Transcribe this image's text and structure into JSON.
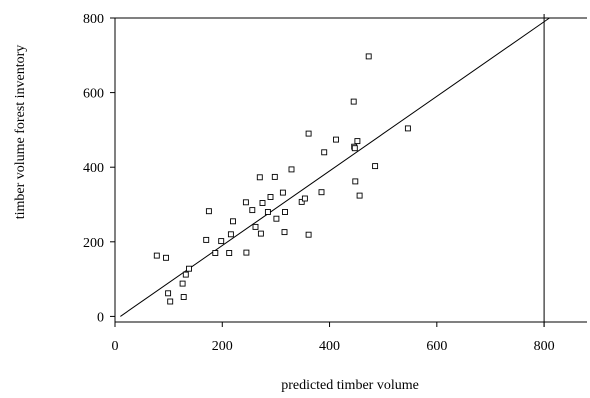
{
  "chart_data": {
    "type": "scatter",
    "title": "",
    "xlabel": "predicted timber   volume",
    "ylabel": "timber volume forest inventory",
    "xlim": [
      0,
      880
    ],
    "ylim": [
      -15,
      800
    ],
    "xticks": [
      0,
      200,
      400,
      600,
      800
    ],
    "yticks": [
      0,
      200,
      400,
      600,
      800
    ],
    "xtick_labels": [
      "0",
      "200",
      "400",
      "600",
      "800"
    ],
    "ytick_labels": [
      "0",
      "200",
      "400",
      "600",
      "800"
    ],
    "grid": false,
    "legend": "none",
    "reference_line": {
      "type": "identity",
      "from": [
        10,
        0
      ],
      "to": [
        810,
        800
      ]
    },
    "series": [
      {
        "marker": "open-square",
        "color": "#000000",
        "points": [
          [
            78,
            163
          ],
          [
            95,
            157
          ],
          [
            99,
            62
          ],
          [
            103,
            40
          ],
          [
            126,
            88
          ],
          [
            128,
            52
          ],
          [
            132,
            112
          ],
          [
            138,
            128
          ],
          [
            170,
            205
          ],
          [
            175,
            282
          ],
          [
            187,
            170
          ],
          [
            198,
            202
          ],
          [
            213,
            170
          ],
          [
            216,
            220
          ],
          [
            220,
            255
          ],
          [
            244,
            306
          ],
          [
            245,
            171
          ],
          [
            256,
            285
          ],
          [
            262,
            240
          ],
          [
            270,
            373
          ],
          [
            272,
            222
          ],
          [
            275,
            304
          ],
          [
            285,
            280
          ],
          [
            290,
            320
          ],
          [
            298,
            374
          ],
          [
            301,
            262
          ],
          [
            313,
            332
          ],
          [
            316,
            226
          ],
          [
            317,
            280
          ],
          [
            329,
            394
          ],
          [
            348,
            307
          ],
          [
            354,
            316
          ],
          [
            361,
            490
          ],
          [
            361,
            219
          ],
          [
            385,
            333
          ],
          [
            390,
            440
          ],
          [
            412,
            474
          ],
          [
            445,
            576
          ],
          [
            446,
            455
          ],
          [
            447,
            451
          ],
          [
            448,
            362
          ],
          [
            452,
            470
          ],
          [
            456,
            324
          ],
          [
            473,
            697
          ],
          [
            485,
            403
          ],
          [
            546,
            504
          ]
        ]
      }
    ]
  }
}
